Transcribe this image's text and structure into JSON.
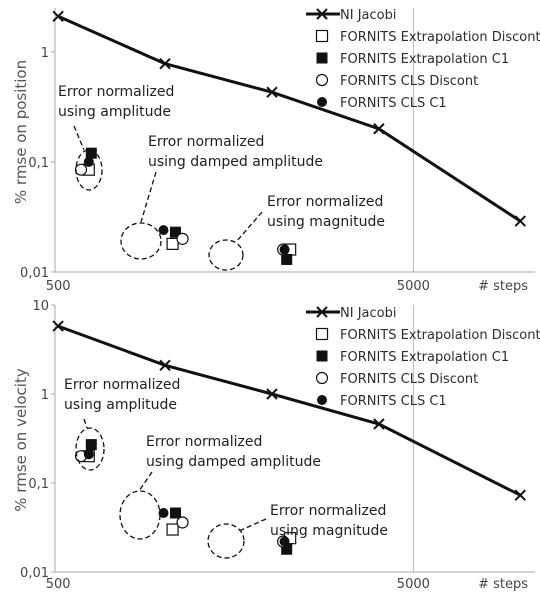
{
  "chart_data": [
    {
      "id": "position",
      "type": "line",
      "ylabel": "% rmse on position",
      "xlabel": "# steps",
      "x_scale": "log",
      "y_scale": "log",
      "xlim": [
        490,
        11000
      ],
      "ylim": [
        0.01,
        2.5
      ],
      "x_ticks": [
        {
          "value": 500,
          "label": "500"
        },
        {
          "value": 5000,
          "label": "5000"
        }
      ],
      "y_ticks": [
        {
          "value": 0.01,
          "label": "0,01"
        },
        {
          "value": 0.1,
          "label": "0,1"
        },
        {
          "value": 1,
          "label": "1"
        }
      ],
      "legend_position": "top-right",
      "series": [
        {
          "name": "NI Jacobi",
          "marker": "cross",
          "x": [
            500,
            1000,
            2000,
            4000,
            10000
          ],
          "y": [
            2.1,
            0.78,
            0.43,
            0.2,
            0.029
          ]
        },
        {
          "name": "FORNITS Extrapolation Discont",
          "marker": "open-square",
          "x": [
            610,
            1050,
            2250
          ],
          "y": [
            0.085,
            0.018,
            0.016
          ]
        },
        {
          "name": "FORNITS Extrapolation C1",
          "marker": "filled-square",
          "x": [
            620,
            1070,
            2200
          ],
          "y": [
            0.12,
            0.023,
            0.013
          ]
        },
        {
          "name": "FORNITS CLS Discont",
          "marker": "open-circle",
          "x": [
            580,
            1120,
            2150
          ],
          "y": [
            0.085,
            0.02,
            0.016
          ]
        },
        {
          "name": "FORNITS CLS C1",
          "marker": "filled-circle",
          "x": [
            610,
            990,
            2170
          ],
          "y": [
            0.1,
            0.024,
            0.016
          ]
        }
      ],
      "annotations": [
        {
          "lines": [
            "Error normalized",
            "using amplitude"
          ]
        },
        {
          "lines": [
            "Error normalized",
            "using damped amplitude"
          ]
        },
        {
          "lines": [
            "Error normalized",
            "using magnitude"
          ]
        }
      ]
    },
    {
      "id": "velocity",
      "type": "line",
      "ylabel": "% rmse on velocity",
      "xlabel": "# steps",
      "x_scale": "log",
      "y_scale": "log",
      "xlim": [
        490,
        11000
      ],
      "ylim": [
        0.01,
        10
      ],
      "x_ticks": [
        {
          "value": 500,
          "label": "500"
        },
        {
          "value": 5000,
          "label": "5000"
        }
      ],
      "y_ticks": [
        {
          "value": 0.01,
          "label": "0,01"
        },
        {
          "value": 0.1,
          "label": "0,1"
        },
        {
          "value": 1,
          "label": "1"
        },
        {
          "value": 10,
          "label": "10"
        }
      ],
      "legend_position": "top-right",
      "series": [
        {
          "name": "NI Jacobi",
          "marker": "cross",
          "x": [
            500,
            1000,
            2000,
            4000,
            10000
          ],
          "y": [
            5.8,
            2.1,
            1.0,
            0.46,
            0.073
          ]
        },
        {
          "name": "FORNITS Extrapolation Discont",
          "marker": "open-square",
          "x": [
            610,
            1050,
            2250
          ],
          "y": [
            0.2,
            0.03,
            0.024
          ]
        },
        {
          "name": "FORNITS Extrapolation C1",
          "marker": "filled-square",
          "x": [
            620,
            1070,
            2200
          ],
          "y": [
            0.27,
            0.046,
            0.018
          ]
        },
        {
          "name": "FORNITS CLS Discont",
          "marker": "open-circle",
          "x": [
            580,
            1120,
            2150
          ],
          "y": [
            0.2,
            0.036,
            0.022
          ]
        },
        {
          "name": "FORNITS CLS C1",
          "marker": "filled-circle",
          "x": [
            610,
            990,
            2170
          ],
          "y": [
            0.21,
            0.046,
            0.022
          ]
        }
      ],
      "annotations": [
        {
          "lines": [
            "Error normalized",
            "using amplitude"
          ]
        },
        {
          "lines": [
            "Error normalized",
            "using damped amplitude"
          ]
        },
        {
          "lines": [
            "Error normalized",
            "using magnitude"
          ]
        }
      ]
    }
  ]
}
